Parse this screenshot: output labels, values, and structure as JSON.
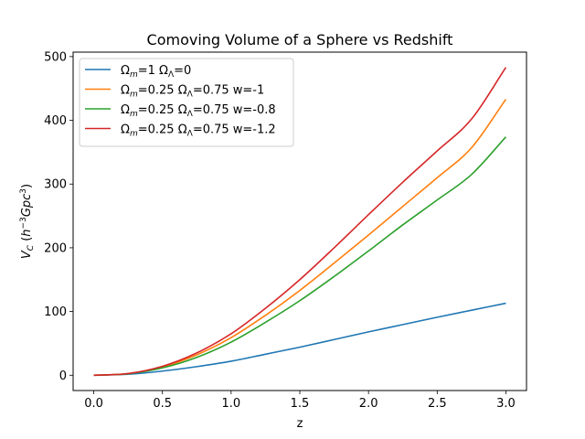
{
  "chart_data": {
    "type": "line",
    "title": "Comoving Volume of a Sphere vs Redshift",
    "xlabel": "z",
    "ylabel": "V_C (h^-3 Gpc^3)",
    "xlim": [
      -0.15,
      3.15
    ],
    "ylim": [
      -24,
      507
    ],
    "xticks": [
      0.0,
      0.5,
      1.0,
      1.5,
      2.0,
      2.5,
      3.0
    ],
    "xtick_labels": [
      "0.0",
      "0.5",
      "1.0",
      "1.5",
      "2.0",
      "2.5",
      "3.0"
    ],
    "yticks": [
      0,
      100,
      200,
      300,
      400,
      500
    ],
    "ytick_labels": [
      "0",
      "100",
      "200",
      "300",
      "400",
      "500"
    ],
    "grid": false,
    "legend_position": "top-left",
    "x": [
      0.0,
      0.25,
      0.5,
      0.75,
      1.0,
      1.25,
      1.5,
      1.75,
      2.0,
      2.25,
      2.5,
      2.75,
      3.0
    ],
    "series": [
      {
        "name": "Ωm=1 ΩΛ=0",
        "color": "#1f77b4",
        "values": [
          0,
          1.5,
          6.5,
          13.5,
          22,
          33,
          44,
          56,
          68,
          79.5,
          91,
          102,
          113
        ]
      },
      {
        "name": "Ωm=0.25 ΩΛ=0.75 w=-1",
        "color": "#ff7f0e",
        "values": [
          0,
          2.5,
          13,
          32,
          59,
          94,
          133,
          176,
          220,
          265,
          310,
          357,
          433
        ]
      },
      {
        "name": "Ωm=0.25 ΩΛ=0.75 w=-0.8",
        "color": "#2ca02c",
        "values": [
          0,
          2.3,
          11.5,
          28,
          52,
          83,
          117,
          155,
          195,
          236,
          275,
          315,
          374
        ]
      },
      {
        "name": "Ωm=0.25 ΩΛ=0.75 w=-1.2",
        "color": "#d62728",
        "values": [
          0,
          2.6,
          14,
          35,
          65,
          105,
          150,
          200,
          252,
          303,
          352,
          402,
          483
        ]
      }
    ]
  }
}
